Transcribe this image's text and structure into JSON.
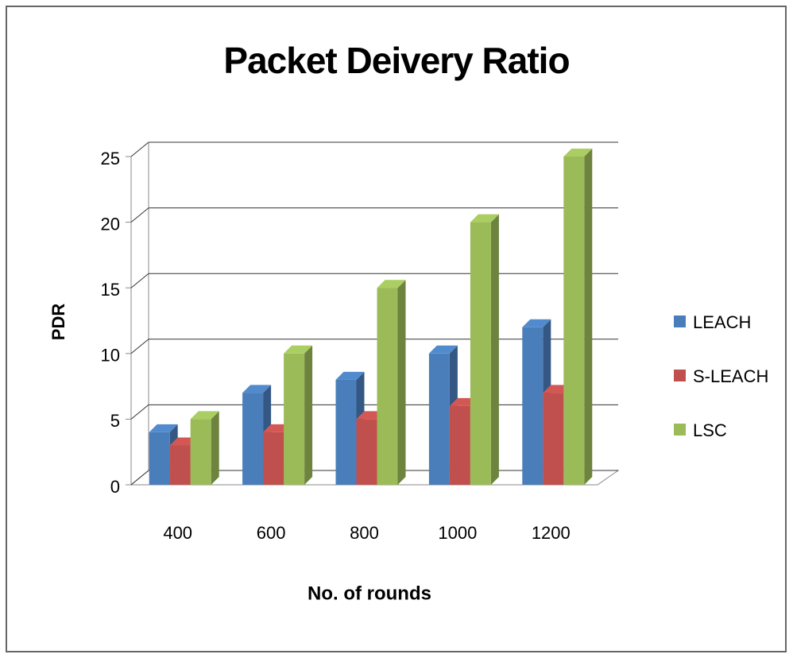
{
  "chart_data": {
    "type": "bar3d",
    "title": "Packet Deivery Ratio",
    "x_label": "No. of rounds",
    "y_label": "PDR",
    "categories": [
      "400",
      "600",
      "800",
      "1000",
      "1200"
    ],
    "series": [
      {
        "name": "LEACH",
        "color": "#4a7ebb",
        "values": [
          4,
          7,
          8,
          10,
          12
        ]
      },
      {
        "name": "S-LEACH",
        "color": "#c0504d",
        "values": [
          3,
          4,
          5,
          6,
          7
        ]
      },
      {
        "name": "LSC",
        "color": "#9bbb59",
        "values": [
          5,
          10,
          15,
          20,
          25
        ]
      }
    ],
    "ylim": [
      0,
      25
    ],
    "yticks": [
      0,
      5,
      10,
      15,
      20,
      25
    ],
    "grid": true,
    "legend": "right"
  }
}
